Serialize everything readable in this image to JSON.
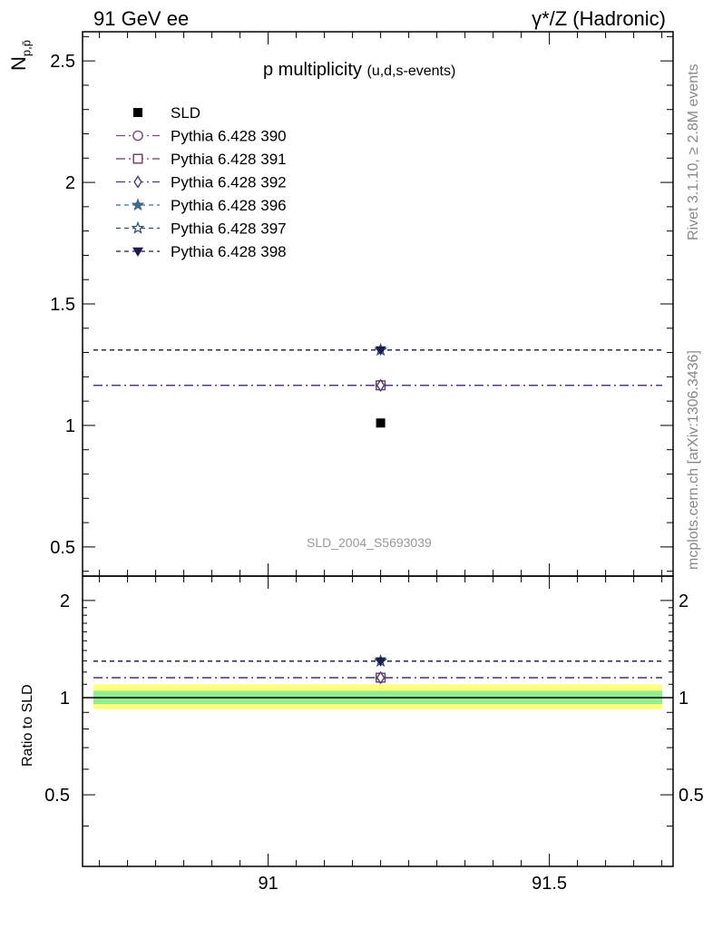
{
  "header": {
    "energy_label": "91 GeV ee",
    "process_label": "γ*/Z (Hadronic)"
  },
  "side_notes": {
    "rivet": "Rivet 3.1.10, ≥ 2.8M events",
    "mcplots": "mcplots.cern.ch [arXiv:1306.3436]"
  },
  "analysis_id": "SLD_2004_S5693039",
  "chart_data": {
    "type": "scatter",
    "title": "p multiplicity",
    "subtitle": "(u,d,s-events)",
    "ylabel_main": "N",
    "ylabel_sub": "p,p̄",
    "ylabel_ratio": "Ratio to SLD",
    "xlim": [
      90.67,
      91.72
    ],
    "ylim": [
      0.38,
      2.62
    ],
    "ratio_ylim": [
      0.3,
      2.38
    ],
    "x_ticks": [
      91,
      91.5
    ],
    "x_tick_labels": [
      "91",
      "91.5"
    ],
    "y_ticks": [
      0.5,
      1,
      1.5,
      2,
      2.5
    ],
    "y_tick_labels": [
      "0.5",
      "1",
      "1.5",
      "2",
      "2.5"
    ],
    "ratio_y_ticks": [
      0.5,
      1,
      2
    ],
    "ratio_y_tick_labels": [
      "0.5",
      "1",
      "2"
    ],
    "legend_position": "top-left",
    "grid": false,
    "data_point": {
      "name": "SLD",
      "x": 91.2,
      "y": 1.01,
      "color": "#000000",
      "band_inner": "#90ee90",
      "band_outer": "#ffff80"
    },
    "series": [
      {
        "name": "Pythia 6.428 390",
        "x": 91.2,
        "y": 1.165,
        "ratio": 1.153,
        "color": "#7a4a7e",
        "marker": "circle-open",
        "dash": "10,4,2,4"
      },
      {
        "name": "Pythia 6.428 391",
        "x": 91.2,
        "y": 1.165,
        "ratio": 1.153,
        "color": "#6e3a5e",
        "marker": "square-open",
        "dash": "10,4,2,4"
      },
      {
        "name": "Pythia 6.428 392",
        "x": 91.2,
        "y": 1.165,
        "ratio": 1.153,
        "color": "#4a3a7e",
        "marker": "diamond-open",
        "dash": "10,4,2,4"
      },
      {
        "name": "Pythia 6.428 396",
        "x": 91.2,
        "y": 1.31,
        "ratio": 1.297,
        "color": "#3e6a8a",
        "marker": "star-filled",
        "dash": "5,4"
      },
      {
        "name": "Pythia 6.428 397",
        "x": 91.2,
        "y": 1.31,
        "ratio": 1.297,
        "color": "#2e4e7a",
        "marker": "star-open",
        "dash": "5,4"
      },
      {
        "name": "Pythia 6.428 398",
        "x": 91.2,
        "y": 1.31,
        "ratio": 1.297,
        "color": "#1c1c4e",
        "marker": "triangle-down-filled",
        "dash": "5,4"
      }
    ]
  }
}
